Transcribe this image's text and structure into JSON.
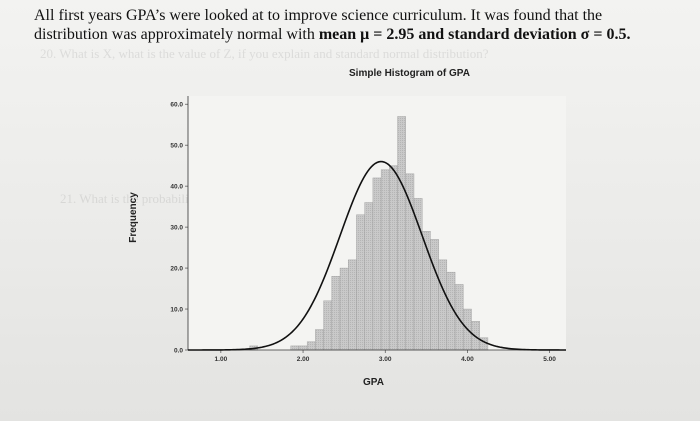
{
  "problem": {
    "line1": "All first years GPA’s were looked at to improve science curriculum. It was found that the",
    "line2_prefix": "distribution was approximately normal with ",
    "line2_bold": "mean μ = 2.95 and standard deviation σ = 0.5.",
    "ghost_line_a": "20. What is X, what is the value of Z, if you explain and standard normal distribution?",
    "ghost_line_b": "21. What is the probability that a student's GPA is greater than 2.90? P(X<2.90)"
  },
  "chart_data": {
    "type": "bar",
    "title": "Simple Histogram of GPA",
    "xlabel": "GPA",
    "ylabel": "Frequency",
    "xlim": [
      0.6,
      5.2
    ],
    "ylim": [
      0,
      62
    ],
    "xticks": [
      "1.00",
      "2.00",
      "3.00",
      "4.00",
      "5.00"
    ],
    "yticks": [
      "0.0",
      "10.0",
      "20.0",
      "30.0",
      "40.0",
      "50.0",
      "60.0"
    ],
    "bin_width": 0.1,
    "bins": [
      {
        "x": 1.4,
        "y": 1
      },
      {
        "x": 1.5,
        "y": 0
      },
      {
        "x": 1.6,
        "y": 0
      },
      {
        "x": 1.7,
        "y": 0
      },
      {
        "x": 1.8,
        "y": 0
      },
      {
        "x": 1.9,
        "y": 1
      },
      {
        "x": 2.0,
        "y": 1
      },
      {
        "x": 2.1,
        "y": 2
      },
      {
        "x": 2.2,
        "y": 5
      },
      {
        "x": 2.3,
        "y": 12
      },
      {
        "x": 2.4,
        "y": 18
      },
      {
        "x": 2.5,
        "y": 20
      },
      {
        "x": 2.6,
        "y": 22
      },
      {
        "x": 2.7,
        "y": 33
      },
      {
        "x": 2.8,
        "y": 36
      },
      {
        "x": 2.9,
        "y": 42
      },
      {
        "x": 3.0,
        "y": 44
      },
      {
        "x": 3.1,
        "y": 45
      },
      {
        "x": 3.2,
        "y": 57
      },
      {
        "x": 3.3,
        "y": 43
      },
      {
        "x": 3.4,
        "y": 37
      },
      {
        "x": 3.5,
        "y": 29
      },
      {
        "x": 3.6,
        "y": 27
      },
      {
        "x": 3.7,
        "y": 22
      },
      {
        "x": 3.8,
        "y": 19
      },
      {
        "x": 3.9,
        "y": 16
      },
      {
        "x": 4.0,
        "y": 10
      },
      {
        "x": 4.1,
        "y": 7
      },
      {
        "x": 4.2,
        "y": 3
      }
    ],
    "curve": {
      "mean": 2.95,
      "sd": 0.5,
      "peak": 46
    },
    "colors": {
      "bar": "#c9c9c9",
      "bar_edge": "#9a9a9a",
      "curve": "#111111",
      "axis": "#333333"
    }
  }
}
